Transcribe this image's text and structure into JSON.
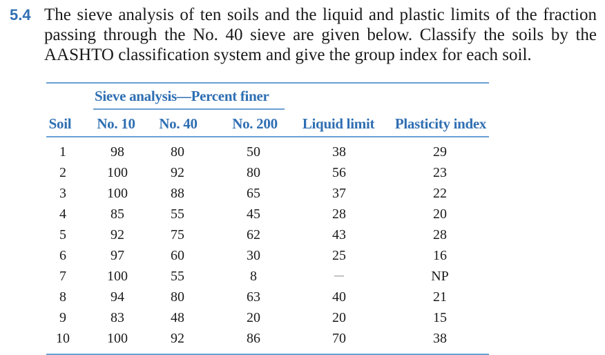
{
  "problem": {
    "number": "5.4",
    "text": "The sieve analysis of ten soils and the liquid and plastic limits of the fraction passing through the No. 40 sieve are given below. Classify the soils by the AASHTO classification system and give the group index for each soil."
  },
  "table": {
    "group_caption": "Sieve analysis—Percent finer",
    "headers": {
      "soil": "Soil",
      "no10": "No. 10",
      "no40": "No. 40",
      "no200": "No. 200",
      "liquid_limit": "Liquid limit",
      "plasticity_index": "Plasticity index"
    },
    "rows": [
      {
        "soil": "1",
        "no10": "98",
        "no40": "80",
        "no200": "50",
        "ll": "38",
        "pi": "29"
      },
      {
        "soil": "2",
        "no10": "100",
        "no40": "92",
        "no200": "80",
        "ll": "56",
        "pi": "23"
      },
      {
        "soil": "3",
        "no10": "100",
        "no40": "88",
        "no200": "65",
        "ll": "37",
        "pi": "22"
      },
      {
        "soil": "4",
        "no10": "85",
        "no40": "55",
        "no200": "45",
        "ll": "28",
        "pi": "20"
      },
      {
        "soil": "5",
        "no10": "92",
        "no40": "75",
        "no200": "62",
        "ll": "43",
        "pi": "28"
      },
      {
        "soil": "6",
        "no10": "97",
        "no40": "60",
        "no200": "30",
        "ll": "25",
        "pi": "16"
      },
      {
        "soil": "7",
        "no10": "100",
        "no40": "55",
        "no200": "8",
        "ll": "—",
        "pi": "NP"
      },
      {
        "soil": "8",
        "no10": "94",
        "no40": "80",
        "no200": "63",
        "ll": "40",
        "pi": "21"
      },
      {
        "soil": "9",
        "no10": "83",
        "no40": "48",
        "no200": "20",
        "ll": "20",
        "pi": "15"
      },
      {
        "soil": "10",
        "no10": "100",
        "no40": "92",
        "no200": "86",
        "ll": "70",
        "pi": "38"
      }
    ]
  },
  "colors": {
    "accent": "#2f6fb3",
    "rule": "#6a9fd4",
    "text": "#1a1a1a"
  }
}
